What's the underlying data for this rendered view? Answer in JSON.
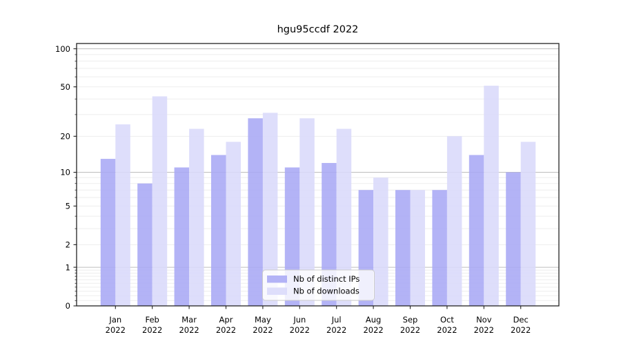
{
  "chart_data": {
    "type": "bar",
    "title": "hgu95ccdf 2022",
    "categories": [
      "Jan",
      "Feb",
      "Mar",
      "Apr",
      "May",
      "Jun",
      "Jul",
      "Aug",
      "Sep",
      "Oct",
      "Nov",
      "Dec"
    ],
    "x_tick_second_line": "2022",
    "series": [
      {
        "name": "Nb of distinct IPs",
        "color": "#a9a9f5",
        "values": [
          13,
          8,
          11,
          14,
          28,
          11,
          12,
          7,
          7,
          7,
          14,
          10
        ]
      },
      {
        "name": "Nb of downloads",
        "color": "#d9d9fa",
        "values": [
          25,
          42,
          23,
          18,
          31,
          28,
          23,
          9,
          7,
          20,
          51,
          18
        ]
      }
    ],
    "yscale": "log10(1+v)",
    "yticks": [
      0,
      1,
      2,
      5,
      10,
      20,
      50,
      100
    ],
    "ytick_labels": [
      "0",
      "1",
      "2",
      "5",
      "10",
      "20",
      "50",
      "100"
    ],
    "ylim": [
      0,
      110
    ],
    "gridlines_minor": [
      0.1,
      0.2,
      0.3,
      0.4,
      0.5,
      0.6,
      0.7,
      0.8,
      0.9,
      2,
      3,
      4,
      5,
      6,
      7,
      8,
      9,
      20,
      30,
      40,
      50,
      60,
      70,
      80,
      90
    ],
    "gridlines_major": [
      1,
      10,
      100
    ],
    "legend": {
      "position": "lower center",
      "labels": [
        "Nb of distinct IPs",
        "Nb of downloads"
      ]
    },
    "colors": {
      "background": "#ffffff",
      "axis": "#222222",
      "grid_minor": "#ededed",
      "grid_major": "#bdbdbd",
      "legend_border": "#cccccc",
      "legend_bg": "#ffffff"
    }
  }
}
